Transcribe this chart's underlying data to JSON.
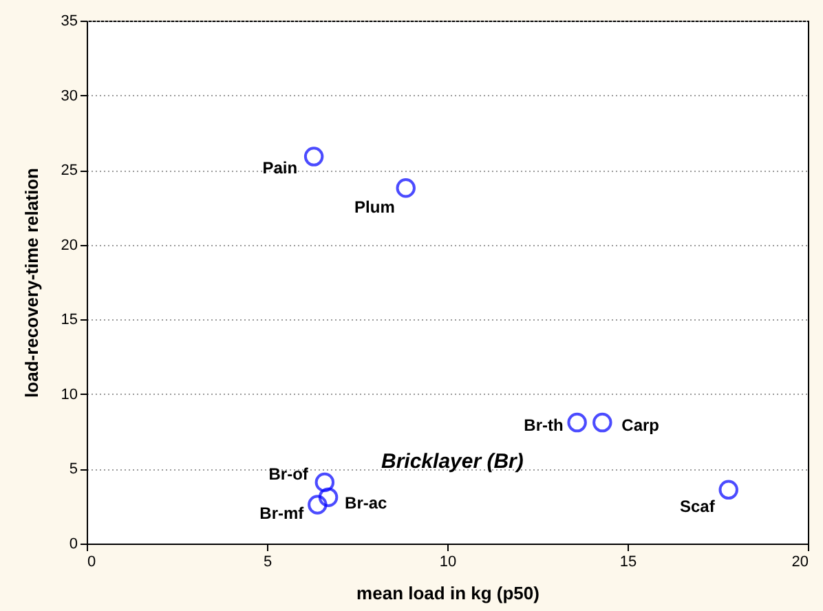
{
  "chart_data": {
    "type": "scatter",
    "xlabel": "mean load in kg  (p50)",
    "ylabel": "load-recovery-time relation",
    "series": [
      {
        "color": "#0000ff",
        "x": [
          6.3,
          8.85,
          6.6,
          6.7,
          6.4,
          13.6,
          14.3,
          17.8
        ],
        "values": [
          25.9,
          23.8,
          4.1,
          3.1,
          2.6,
          8.1,
          8.1,
          3.6
        ]
      }
    ],
    "annotations": [
      {
        "text": "Pain",
        "x": 6.3,
        "y": 25.9
      },
      {
        "text": "Plum",
        "x": 8.85,
        "y": 23.8
      },
      {
        "text": "Br-of",
        "x": 6.6,
        "y": 4.1
      },
      {
        "text": "Br-ac",
        "x": 6.7,
        "y": 3.1
      },
      {
        "text": "Br-mf",
        "x": 6.4,
        "y": 2.6
      },
      {
        "text": "Br-th",
        "x": 13.6,
        "y": 8.1
      },
      {
        "text": "Carp",
        "x": 14.3,
        "y": 8.1
      },
      {
        "text": "Scaf",
        "x": 17.8,
        "y": 3.6
      },
      "Bricklayer  (Br)"
    ],
    "xlim": [
      0,
      20
    ],
    "xticks": [
      0,
      5,
      10,
      15,
      20
    ],
    "ylim": [
      0,
      35
    ],
    "yticks": [
      0,
      5,
      10,
      15,
      20,
      25,
      30,
      35
    ],
    "grid": "y",
    "marker": "circle"
  }
}
